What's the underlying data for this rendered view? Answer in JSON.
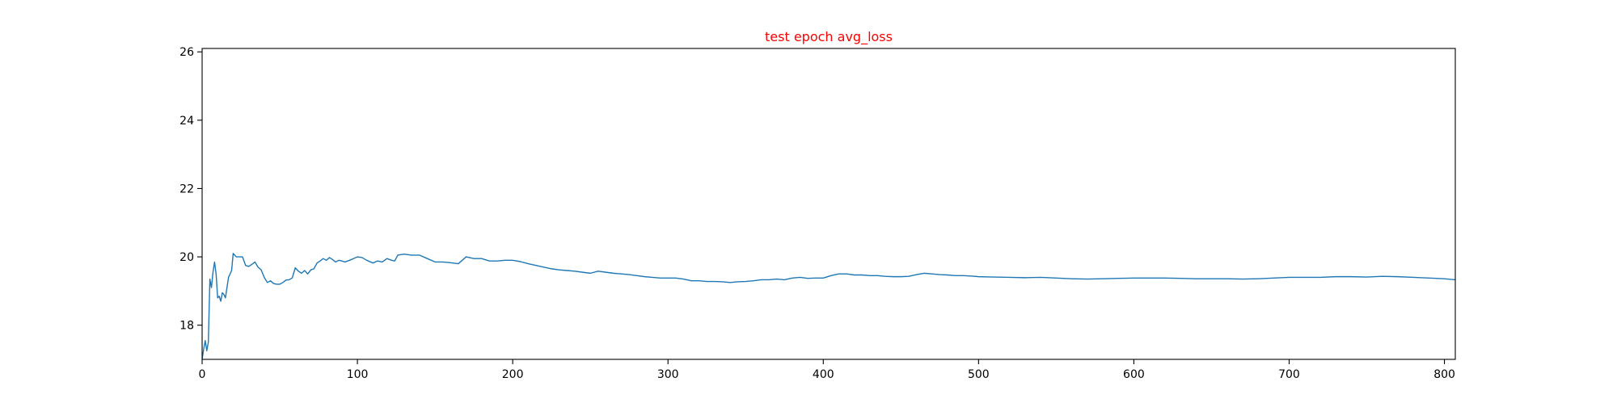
{
  "chart_data": {
    "type": "line",
    "title": "test epoch avg_loss",
    "title_color": "#ff0000",
    "xlabel": "",
    "ylabel": "",
    "xlim": [
      0,
      807
    ],
    "ylim": [
      17.0,
      26.1
    ],
    "xticks": [
      0,
      100,
      200,
      300,
      400,
      500,
      600,
      700,
      800
    ],
    "yticks": [
      18,
      20,
      22,
      24,
      26
    ],
    "grid": false,
    "legend": "none",
    "series": [
      {
        "color": "#1f77b4",
        "points": [
          [
            0,
            17.0
          ],
          [
            1,
            17.3
          ],
          [
            2,
            17.55
          ],
          [
            3,
            17.25
          ],
          [
            4,
            17.5
          ],
          [
            5,
            19.35
          ],
          [
            6,
            19.1
          ],
          [
            7,
            19.55
          ],
          [
            8,
            19.85
          ],
          [
            9,
            19.5
          ],
          [
            10,
            18.8
          ],
          [
            11,
            18.85
          ],
          [
            12,
            18.7
          ],
          [
            13,
            18.95
          ],
          [
            14,
            18.9
          ],
          [
            15,
            18.8
          ],
          [
            17,
            19.4
          ],
          [
            19,
            19.6
          ],
          [
            20,
            20.1
          ],
          [
            22,
            20.0
          ],
          [
            24,
            20.0
          ],
          [
            26,
            20.0
          ],
          [
            28,
            19.75
          ],
          [
            30,
            19.72
          ],
          [
            32,
            19.78
          ],
          [
            34,
            19.85
          ],
          [
            36,
            19.7
          ],
          [
            38,
            19.62
          ],
          [
            40,
            19.4
          ],
          [
            42,
            19.25
          ],
          [
            44,
            19.3
          ],
          [
            46,
            19.22
          ],
          [
            48,
            19.2
          ],
          [
            50,
            19.2
          ],
          [
            52,
            19.25
          ],
          [
            54,
            19.32
          ],
          [
            56,
            19.33
          ],
          [
            58,
            19.38
          ],
          [
            60,
            19.68
          ],
          [
            62,
            19.58
          ],
          [
            64,
            19.52
          ],
          [
            66,
            19.6
          ],
          [
            68,
            19.5
          ],
          [
            70,
            19.62
          ],
          [
            72,
            19.65
          ],
          [
            74,
            19.82
          ],
          [
            76,
            19.88
          ],
          [
            78,
            19.95
          ],
          [
            80,
            19.9
          ],
          [
            82,
            19.98
          ],
          [
            84,
            19.92
          ],
          [
            86,
            19.85
          ],
          [
            88,
            19.9
          ],
          [
            90,
            19.88
          ],
          [
            92,
            19.85
          ],
          [
            95,
            19.9
          ],
          [
            98,
            19.96
          ],
          [
            100,
            20.0
          ],
          [
            103,
            19.98
          ],
          [
            106,
            19.9
          ],
          [
            110,
            19.82
          ],
          [
            113,
            19.88
          ],
          [
            116,
            19.85
          ],
          [
            119,
            19.95
          ],
          [
            122,
            19.9
          ],
          [
            124,
            19.88
          ],
          [
            126,
            20.05
          ],
          [
            130,
            20.08
          ],
          [
            135,
            20.05
          ],
          [
            140,
            20.05
          ],
          [
            145,
            19.95
          ],
          [
            150,
            19.85
          ],
          [
            155,
            19.85
          ],
          [
            160,
            19.83
          ],
          [
            165,
            19.8
          ],
          [
            170,
            20.0
          ],
          [
            175,
            19.95
          ],
          [
            180,
            19.95
          ],
          [
            185,
            19.88
          ],
          [
            190,
            19.88
          ],
          [
            195,
            19.9
          ],
          [
            200,
            19.9
          ],
          [
            205,
            19.86
          ],
          [
            210,
            19.8
          ],
          [
            215,
            19.75
          ],
          [
            220,
            19.7
          ],
          [
            225,
            19.65
          ],
          [
            230,
            19.62
          ],
          [
            235,
            19.6
          ],
          [
            240,
            19.58
          ],
          [
            245,
            19.55
          ],
          [
            250,
            19.52
          ],
          [
            255,
            19.58
          ],
          [
            260,
            19.55
          ],
          [
            265,
            19.52
          ],
          [
            270,
            19.5
          ],
          [
            275,
            19.48
          ],
          [
            280,
            19.45
          ],
          [
            285,
            19.42
          ],
          [
            290,
            19.4
          ],
          [
            295,
            19.38
          ],
          [
            300,
            19.38
          ],
          [
            305,
            19.38
          ],
          [
            310,
            19.35
          ],
          [
            315,
            19.3
          ],
          [
            320,
            19.3
          ],
          [
            325,
            19.28
          ],
          [
            330,
            19.28
          ],
          [
            335,
            19.27
          ],
          [
            340,
            19.25
          ],
          [
            345,
            19.27
          ],
          [
            350,
            19.28
          ],
          [
            355,
            19.3
          ],
          [
            360,
            19.33
          ],
          [
            365,
            19.33
          ],
          [
            370,
            19.35
          ],
          [
            375,
            19.33
          ],
          [
            380,
            19.38
          ],
          [
            385,
            19.4
          ],
          [
            390,
            19.37
          ],
          [
            395,
            19.38
          ],
          [
            400,
            19.38
          ],
          [
            405,
            19.45
          ],
          [
            410,
            19.5
          ],
          [
            415,
            19.5
          ],
          [
            420,
            19.47
          ],
          [
            425,
            19.47
          ],
          [
            430,
            19.45
          ],
          [
            435,
            19.45
          ],
          [
            440,
            19.43
          ],
          [
            445,
            19.42
          ],
          [
            450,
            19.42
          ],
          [
            455,
            19.43
          ],
          [
            460,
            19.48
          ],
          [
            465,
            19.52
          ],
          [
            470,
            19.5
          ],
          [
            475,
            19.48
          ],
          [
            480,
            19.47
          ],
          [
            485,
            19.45
          ],
          [
            490,
            19.45
          ],
          [
            495,
            19.44
          ],
          [
            500,
            19.42
          ],
          [
            510,
            19.41
          ],
          [
            520,
            19.4
          ],
          [
            530,
            19.39
          ],
          [
            540,
            19.4
          ],
          [
            550,
            19.38
          ],
          [
            560,
            19.36
          ],
          [
            570,
            19.35
          ],
          [
            580,
            19.36
          ],
          [
            590,
            19.37
          ],
          [
            600,
            19.38
          ],
          [
            610,
            19.38
          ],
          [
            620,
            19.38
          ],
          [
            630,
            19.37
          ],
          [
            640,
            19.36
          ],
          [
            650,
            19.36
          ],
          [
            660,
            19.36
          ],
          [
            670,
            19.35
          ],
          [
            680,
            19.36
          ],
          [
            690,
            19.38
          ],
          [
            700,
            19.4
          ],
          [
            710,
            19.4
          ],
          [
            720,
            19.4
          ],
          [
            730,
            19.42
          ],
          [
            740,
            19.42
          ],
          [
            750,
            19.41
          ],
          [
            760,
            19.43
          ],
          [
            770,
            19.42
          ],
          [
            780,
            19.4
          ],
          [
            790,
            19.38
          ],
          [
            800,
            19.36
          ],
          [
            807,
            19.33
          ]
        ]
      }
    ]
  }
}
